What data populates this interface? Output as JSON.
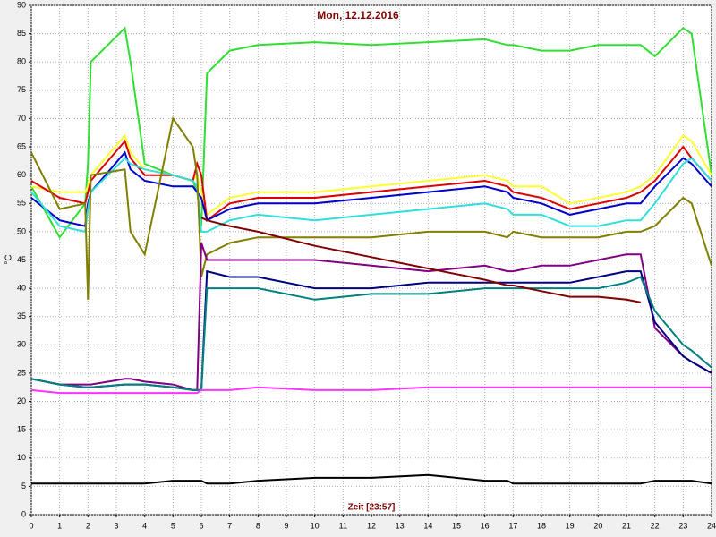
{
  "chart_data": {
    "type": "line",
    "title": "Mon, 12.12.2016",
    "x_label": "Zeit [23:57]",
    "y_label": "°C",
    "x": [
      0,
      1,
      1.9,
      2,
      2.1,
      3.3,
      3.5,
      4,
      5,
      5.7,
      5.85,
      6,
      6.2,
      7,
      8,
      10,
      12,
      14,
      16,
      16.8,
      17,
      18,
      19,
      20,
      21,
      21.5,
      22,
      23,
      23.3,
      24
    ],
    "xlim": [
      0,
      24
    ],
    "xticks": [
      0,
      1,
      2,
      3,
      4,
      5,
      6,
      7,
      8,
      9,
      10,
      11,
      12,
      13,
      14,
      15,
      16,
      17,
      18,
      19,
      20,
      21,
      22,
      23,
      24
    ],
    "ylim": [
      0,
      90
    ],
    "yticks": [
      0,
      5,
      10,
      15,
      20,
      25,
      30,
      35,
      40,
      45,
      50,
      55,
      60,
      65,
      70,
      75,
      80,
      85,
      90
    ],
    "grid": true,
    "series": [
      {
        "color": "#33dd33",
        "values": [
          58,
          49,
          55,
          62,
          80,
          86,
          80,
          62,
          60,
          59,
          57,
          51,
          78,
          82,
          83,
          83.5,
          83,
          83.5,
          84,
          83,
          83,
          82,
          82,
          83,
          83,
          83,
          81,
          86,
          85,
          60
        ]
      },
      {
        "color": "#ffff33",
        "values": [
          58,
          57,
          57,
          58,
          60,
          67,
          64,
          61,
          60,
          59,
          60,
          57,
          53,
          56,
          57,
          57,
          58,
          59,
          60,
          59,
          58,
          58,
          55,
          56,
          57,
          58,
          60,
          67,
          66,
          60
        ]
      },
      {
        "color": "#dd0000",
        "values": [
          59,
          56,
          55,
          57,
          59,
          66,
          63,
          60,
          60,
          59,
          62,
          60,
          52,
          55,
          56,
          56,
          57,
          58,
          59,
          58,
          57,
          56,
          54,
          55,
          56,
          57,
          59,
          65,
          63,
          59
        ]
      },
      {
        "color": "#0000cc",
        "values": [
          56,
          52,
          51,
          55,
          57,
          64,
          61,
          59,
          58,
          58,
          57,
          56,
          52,
          54,
          55,
          55,
          56,
          57,
          58,
          57,
          56,
          55,
          53,
          54,
          55,
          55,
          58,
          63,
          62,
          58
        ]
      },
      {
        "color": "#33dddd",
        "values": [
          57,
          51,
          50,
          54,
          57,
          63,
          62,
          61,
          60,
          59,
          58,
          50,
          50,
          52,
          53,
          52,
          53,
          54,
          55,
          54,
          53,
          53,
          51,
          51,
          52,
          52,
          55,
          62,
          63,
          59
        ]
      },
      {
        "color": "#808000",
        "values": [
          64,
          54,
          55,
          38,
          60,
          61,
          50,
          46,
          70,
          65,
          60,
          42,
          46,
          48,
          49,
          49,
          49,
          50,
          50,
          49,
          50,
          49,
          49,
          49,
          50,
          50,
          51,
          56,
          55,
          44
        ]
      },
      {
        "color": "#800080",
        "values": [
          24,
          23,
          23,
          23,
          23,
          24,
          24,
          23.5,
          23,
          22,
          22,
          48,
          45,
          45,
          45,
          45,
          44,
          43,
          44,
          43,
          43,
          44,
          44,
          45,
          46,
          46,
          33,
          28,
          27,
          25
        ]
      },
      {
        "color": "#000080",
        "values": [
          24,
          23,
          22.5,
          22.5,
          22.5,
          23,
          23,
          23,
          22.5,
          22,
          22,
          22,
          43,
          42,
          42,
          40,
          40,
          41,
          41,
          41,
          41,
          41,
          41,
          42,
          43,
          43,
          34,
          28,
          27,
          25
        ]
      },
      {
        "color": "#008080",
        "values": [
          24,
          23,
          22.5,
          22.5,
          22.5,
          23,
          23,
          23,
          22.5,
          22,
          22,
          22,
          40,
          40,
          40,
          38,
          39,
          39,
          40,
          40,
          40,
          40,
          40,
          40,
          41,
          42,
          36,
          30,
          29,
          26
        ]
      },
      {
        "color": "#800000",
        "values": [
          null,
          null,
          null,
          null,
          null,
          null,
          null,
          null,
          null,
          null,
          null,
          52.5,
          52,
          51,
          50,
          47.5,
          45.5,
          43.5,
          41.5,
          40.5,
          40.5,
          39.5,
          38.5,
          38.5,
          38,
          37.5,
          null,
          null,
          null,
          null
        ]
      },
      {
        "color": "#ff33ff",
        "values": [
          22,
          21.5,
          21.5,
          21.5,
          21.5,
          21.5,
          21.5,
          21.5,
          21.5,
          21.5,
          21.5,
          22,
          22,
          22,
          22.5,
          22,
          22,
          22.5,
          22.5,
          22.5,
          22.5,
          22.5,
          22.5,
          22.5,
          22.5,
          22.5,
          22.5,
          22.5,
          22.5,
          22.5
        ]
      },
      {
        "color": "#000000",
        "values": [
          5.5,
          5.5,
          5.5,
          5.5,
          5.5,
          5.5,
          5.5,
          5.5,
          6,
          6,
          6,
          6,
          5.5,
          5.5,
          6,
          6.5,
          6.5,
          7,
          6,
          6,
          5.5,
          5.5,
          5.5,
          5.5,
          5.5,
          5.5,
          6,
          6,
          6,
          5.5
        ]
      }
    ]
  }
}
